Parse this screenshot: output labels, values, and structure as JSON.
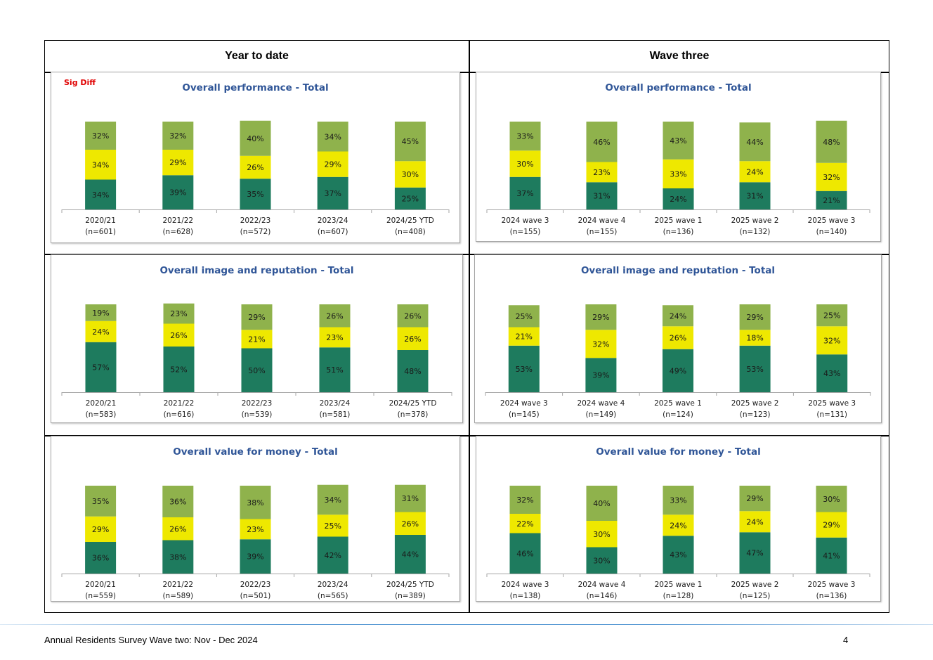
{
  "headers": {
    "left": "Year to date",
    "right": "Wave three"
  },
  "sig_diff_label": "Sig Diff",
  "footer": {
    "text": "Annual Residents Survey Wave two: Nov - Dec 2024",
    "page_number": "4"
  },
  "colors": {
    "bottom": "#1e7b5e",
    "middle": "#eee800",
    "top": "#8fb24c",
    "title": "#2f5597",
    "sig_diff": "#e00000"
  },
  "chart_data": [
    {
      "type": "bar",
      "stacked": true,
      "title": "Overall performance - Total",
      "categories": [
        "2020/21",
        "2021/22",
        "2022/23",
        "2023/24",
        "2024/25 YTD"
      ],
      "category_n": [
        "(n=601)",
        "(n=628)",
        "(n=572)",
        "(n=607)",
        "(n=408)"
      ],
      "series": [
        {
          "values": [
            34,
            39,
            35,
            37,
            25
          ]
        },
        {
          "values": [
            34,
            29,
            26,
            29,
            30
          ]
        },
        {
          "values": [
            32,
            32,
            40,
            34,
            45
          ]
        }
      ]
    },
    {
      "type": "bar",
      "stacked": true,
      "title": "Overall performance - Total",
      "categories": [
        "2024 wave 3",
        "2024 wave 4",
        "2025 wave 1",
        "2025 wave 2",
        "2025 wave 3"
      ],
      "category_n": [
        "(n=155)",
        "(n=155)",
        "(n=136)",
        "(n=132)",
        "(n=140)"
      ],
      "series": [
        {
          "values": [
            37,
            31,
            24,
            31,
            21
          ]
        },
        {
          "values": [
            30,
            23,
            33,
            24,
            32
          ]
        },
        {
          "values": [
            33,
            46,
            43,
            44,
            48
          ]
        }
      ]
    },
    {
      "type": "bar",
      "stacked": true,
      "title": "Overall image and reputation - Total",
      "categories": [
        "2020/21",
        "2021/22",
        "2022/23",
        "2023/24",
        "2024/25 YTD"
      ],
      "category_n": [
        "(n=583)",
        "(n=616)",
        "(n=539)",
        "(n=581)",
        "(n=378)"
      ],
      "series": [
        {
          "values": [
            57,
            52,
            50,
            51,
            48
          ]
        },
        {
          "values": [
            24,
            26,
            21,
            23,
            26
          ]
        },
        {
          "values": [
            19,
            23,
            29,
            26,
            26
          ]
        }
      ]
    },
    {
      "type": "bar",
      "stacked": true,
      "title": "Overall image and reputation - Total",
      "categories": [
        "2024 wave 3",
        "2024 wave 4",
        "2025 wave 1",
        "2025 wave 2",
        "2025 wave 3"
      ],
      "category_n": [
        "(n=145)",
        "(n=149)",
        "(n=124)",
        "(n=123)",
        "(n=131)"
      ],
      "series": [
        {
          "values": [
            53,
            39,
            49,
            53,
            43
          ]
        },
        {
          "values": [
            21,
            32,
            26,
            18,
            32
          ]
        },
        {
          "values": [
            25,
            29,
            24,
            29,
            25
          ]
        }
      ]
    },
    {
      "type": "bar",
      "stacked": true,
      "title": "Overall value for money - Total",
      "categories": [
        "2020/21",
        "2021/22",
        "2022/23",
        "2023/24",
        "2024/25 YTD"
      ],
      "category_n": [
        "(n=559)",
        "(n=589)",
        "(n=501)",
        "(n=565)",
        "(n=389)"
      ],
      "series": [
        {
          "values": [
            36,
            38,
            39,
            42,
            44
          ]
        },
        {
          "values": [
            29,
            26,
            23,
            25,
            26
          ]
        },
        {
          "values": [
            35,
            36,
            38,
            34,
            31
          ]
        }
      ]
    },
    {
      "type": "bar",
      "stacked": true,
      "title": "Overall value for money - Total",
      "categories": [
        "2024 wave 3",
        "2024 wave 4",
        "2025 wave 1",
        "2025 wave 2",
        "2025 wave 3"
      ],
      "category_n": [
        "(n=138)",
        "(n=146)",
        "(n=128)",
        "(n=125)",
        "(n=136)"
      ],
      "series": [
        {
          "values": [
            46,
            30,
            43,
            47,
            41
          ]
        },
        {
          "values": [
            22,
            30,
            24,
            24,
            29
          ]
        },
        {
          "values": [
            32,
            40,
            33,
            29,
            30
          ]
        }
      ]
    }
  ]
}
